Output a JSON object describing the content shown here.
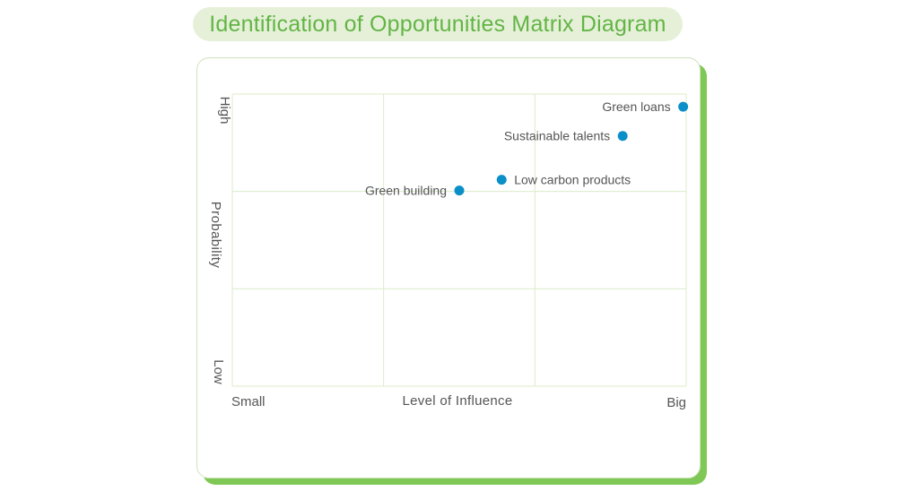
{
  "title": "Identification of Opportunities Matrix Diagram",
  "colors": {
    "accent": "#62b545",
    "pill_bg": "#e6f0d8",
    "card_shadow": "#7fc856",
    "grid": "#dcebc9",
    "point": "#0a8fc8",
    "text": "#555555"
  },
  "chart_data": {
    "type": "scatter",
    "title": "Identification of Opportunities Matrix Diagram",
    "xlabel": "Level of Influence",
    "ylabel": "Probability",
    "x_tick_low": "Small",
    "x_tick_high": "Big",
    "y_tick_low": "Low",
    "y_tick_high": "High",
    "xlim": [
      0,
      3
    ],
    "ylim": [
      0,
      3
    ],
    "grid": true,
    "points": [
      {
        "label": "Green loans",
        "x": 2.98,
        "y": 2.87
      },
      {
        "label": "Sustainable talents",
        "x": 2.58,
        "y": 2.57
      },
      {
        "label": "Low carbon products",
        "x": 1.78,
        "y": 2.12
      },
      {
        "label": "Green building",
        "x": 1.5,
        "y": 2.01
      }
    ]
  }
}
